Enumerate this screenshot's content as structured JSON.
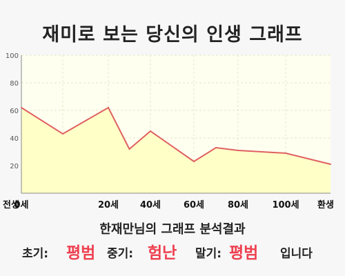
{
  "title": "재미로 보는 당신의 인생 그래프",
  "chart_data": {
    "type": "area",
    "x_labels": [
      "전생",
      "0세",
      "20세",
      "40세",
      "60세",
      "80세",
      "100세",
      "환생"
    ],
    "y_ticks": [
      20,
      40,
      60,
      80,
      100
    ],
    "ylim": [
      0,
      100
    ],
    "points": [
      {
        "x": "전생",
        "y": 62
      },
      {
        "x": "0세",
        "y": 43
      },
      {
        "x": "20세",
        "y": 62
      },
      {
        "x": "30세",
        "y": 32
      },
      {
        "x": "40세",
        "y": 45
      },
      {
        "x": "60세",
        "y": 23
      },
      {
        "x": "70세",
        "y": 33
      },
      {
        "x": "80세",
        "y": 31
      },
      {
        "x": "90세",
        "y": 30
      },
      {
        "x": "100세",
        "y": 29
      },
      {
        "x": "환생",
        "y": 21
      }
    ],
    "grid": true,
    "colors": {
      "line": "#e06060",
      "fill": "#ffffc8",
      "plot_bg": "#fffff0",
      "grid": "#e6e6c8",
      "axis": "#888888"
    }
  },
  "summary": "한재만님의 그래프 분석결과",
  "verdict": {
    "early_label": "초기:",
    "early_value": "평범",
    "mid_label": "중기:",
    "mid_value": "험난",
    "late_label": "말기:",
    "late_value": "평범",
    "ending": "입니다"
  }
}
